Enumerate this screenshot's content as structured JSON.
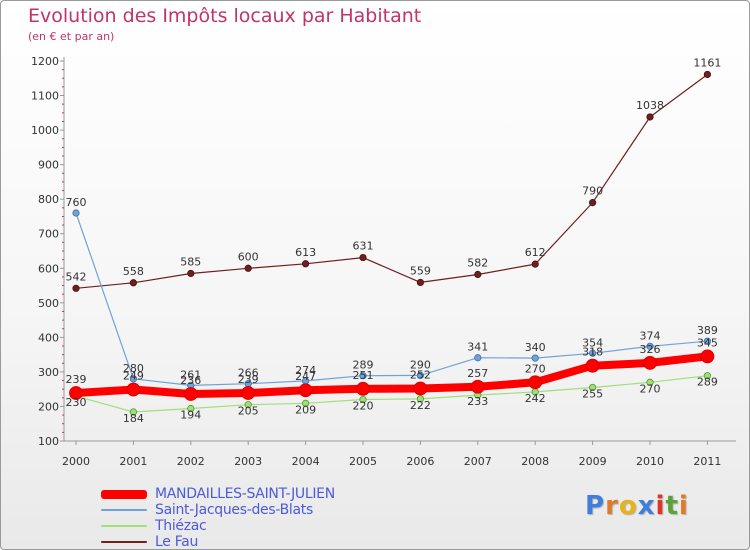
{
  "header": {
    "title": "Evolution des Impôts locaux par Habitant",
    "subtitle": "(en € et par an)"
  },
  "chart_data": {
    "type": "line",
    "title": "Evolution des Impôts locaux par Habitant",
    "subtitle": "(en € et par an)",
    "xlabel": "",
    "ylabel": "",
    "x": [
      "2000",
      "2001",
      "2002",
      "2003",
      "2004",
      "2005",
      "2006",
      "2007",
      "2008",
      "2009",
      "2010",
      "2011"
    ],
    "ylim": [
      100,
      1200
    ],
    "yticks": [
      100,
      200,
      300,
      400,
      500,
      600,
      700,
      800,
      900,
      1000,
      1100,
      1200
    ],
    "grid": false,
    "legend_position": "bottom-left",
    "series": [
      {
        "name": "Le Fau",
        "color": "#6e1f1f",
        "values": [
          542,
          558,
          585,
          600,
          613,
          631,
          559,
          582,
          612,
          790,
          1038,
          1161
        ]
      },
      {
        "name": "Thiézac",
        "color": "#9ee07a",
        "values": [
          230,
          184,
          194,
          205,
          209,
          220,
          222,
          233,
          242,
          255,
          270,
          289
        ]
      },
      {
        "name": "Saint-Jacques-des-Blats",
        "color": "#6fa3d8",
        "values": [
          760,
          280,
          261,
          266,
          274,
          289,
          290,
          341,
          340,
          354,
          374,
          389
        ]
      },
      {
        "name": "MANDAILLES-SAINT-JULIEN",
        "color": "#ff0000",
        "values": [
          239,
          249,
          236,
          239,
          247,
          251,
          252,
          257,
          270,
          318,
          326,
          345
        ]
      }
    ],
    "legend_order": [
      "MANDAILLES-SAINT-JULIEN",
      "Saint-Jacques-des-Blats",
      "Thiézac",
      "Le Fau"
    ]
  },
  "logo": {
    "letters": [
      "P",
      "r",
      "o",
      "x",
      "i",
      "t",
      "i"
    ],
    "colors": [
      "#3f7fd9",
      "#e07b2a",
      "#e8b21c",
      "#3f7fd9",
      "#d9362c",
      "#5aa33a",
      "#e07b2a"
    ]
  }
}
